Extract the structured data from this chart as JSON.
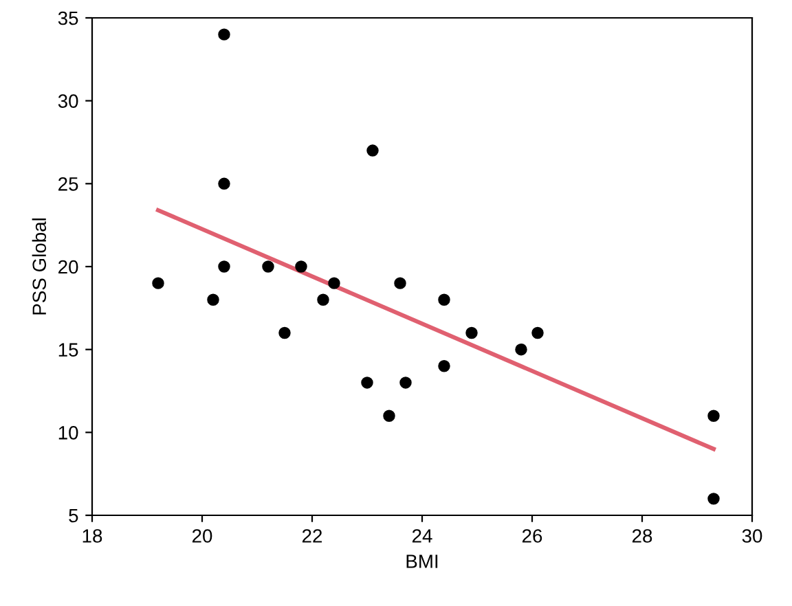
{
  "chart_data": {
    "type": "scatter",
    "xlabel": "BMI",
    "ylabel": "PSS Global",
    "xlim": [
      18,
      30
    ],
    "xticks": [
      18,
      20,
      22,
      24,
      26,
      28,
      30
    ],
    "ylim": [
      5,
      35
    ],
    "yticks": [
      5,
      10,
      15,
      20,
      25,
      30,
      35
    ],
    "grid": false,
    "legend": false,
    "series": [
      {
        "color": "#000000",
        "marker": "circle",
        "x": [
          19.2,
          20.2,
          20.4,
          20.4,
          20.4,
          21.2,
          21.5,
          21.8,
          22.2,
          22.4,
          23.0,
          23.1,
          23.4,
          23.6,
          23.7,
          24.4,
          24.4,
          24.9,
          25.8,
          26.1,
          29.3,
          29.3
        ],
        "values": [
          19,
          18,
          34,
          25,
          20,
          20,
          16,
          20,
          18,
          19,
          13,
          27,
          11,
          19,
          13,
          18,
          14,
          16,
          15,
          16,
          11,
          6
        ]
      },
      {
        "type": "line",
        "color": "#e06070",
        "marker": "none",
        "line_style": "solid",
        "x": [
          19.2,
          29.3
        ],
        "values": [
          23.4,
          9.0
        ]
      }
    ]
  }
}
